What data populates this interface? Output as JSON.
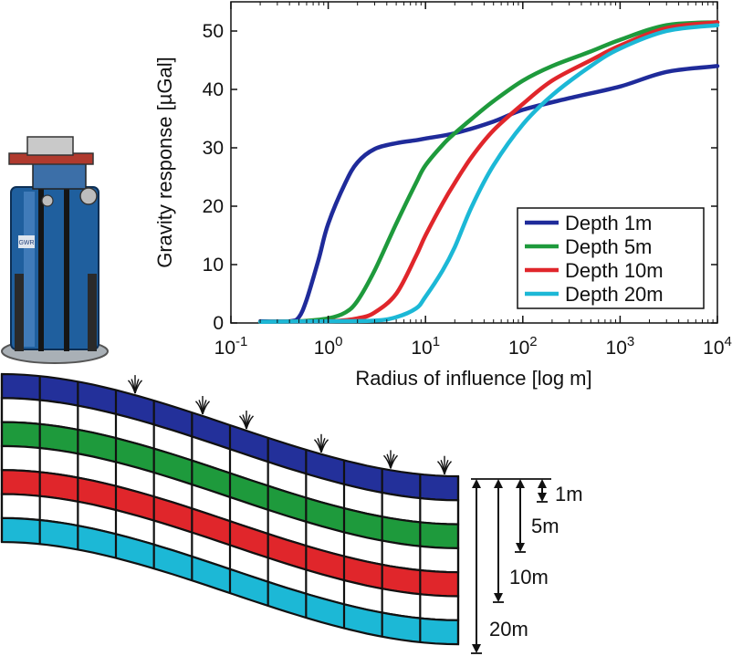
{
  "chart_data": {
    "type": "line",
    "title": "",
    "xlabel": "Radius of influence [log m]",
    "ylabel": "Gravity response [µGal]",
    "xscale": "log",
    "xlim": [
      0.1,
      10000
    ],
    "ylim": [
      0,
      55
    ],
    "yticks": [
      0,
      10,
      20,
      30,
      40,
      50
    ],
    "xticks": [
      {
        "value": 0.1,
        "base": "10",
        "exp": "-1"
      },
      {
        "value": 1,
        "base": "10",
        "exp": "0"
      },
      {
        "value": 10,
        "base": "10",
        "exp": "1"
      },
      {
        "value": 100,
        "base": "10",
        "exp": "2"
      },
      {
        "value": 1000,
        "base": "10",
        "exp": "3"
      },
      {
        "value": 10000,
        "base": "10",
        "exp": "4"
      }
    ],
    "grid": false,
    "legend": "bottom-right",
    "series": [
      {
        "name": "Depth 1m",
        "color": "#1f2b9a",
        "x": [
          0.2,
          0.4,
          0.5,
          0.6,
          0.8,
          1,
          1.5,
          2,
          3,
          5,
          8,
          10,
          20,
          50,
          100,
          300,
          1000,
          3000,
          10000
        ],
        "y": [
          0.3,
          0.3,
          1,
          4,
          11,
          17,
          24,
          27.5,
          29.8,
          30.8,
          31.3,
          31.6,
          32.5,
          34.5,
          36.5,
          38.5,
          40.5,
          43,
          44
        ]
      },
      {
        "name": "Depth 5m",
        "color": "#1e9a3c",
        "x": [
          0.2,
          0.5,
          1,
          1.5,
          2,
          3,
          5,
          8,
          10,
          15,
          20,
          30,
          50,
          100,
          200,
          500,
          1000,
          3000,
          10000
        ],
        "y": [
          0.2,
          0.3,
          0.8,
          1.8,
          3.8,
          9,
          17,
          24,
          27,
          30.5,
          32.5,
          35,
          38,
          41.5,
          44,
          46.5,
          48.5,
          51,
          51.5
        ]
      },
      {
        "name": "Depth 10m",
        "color": "#e0262b",
        "x": [
          0.2,
          1,
          2,
          3,
          5,
          8,
          10,
          15,
          20,
          30,
          50,
          100,
          200,
          500,
          1000,
          3000,
          10000
        ],
        "y": [
          0.2,
          0.3,
          0.8,
          1.8,
          5,
          11.5,
          15,
          20.5,
          24,
          28.5,
          33,
          37.5,
          41.5,
          45,
          47.5,
          50.5,
          51.5
        ]
      },
      {
        "name": "Depth 20m",
        "color": "#1cb8d6",
        "x": [
          0.2,
          1,
          3,
          5,
          8,
          10,
          15,
          20,
          30,
          50,
          100,
          200,
          500,
          1000,
          3000,
          10000
        ],
        "y": [
          0.2,
          0.3,
          0.4,
          1,
          2.5,
          4.5,
          9,
          13,
          20,
          27,
          34,
          39,
          44,
          47,
          50,
          51
        ]
      }
    ]
  },
  "figure": {
    "layer_colors": [
      "#23309a",
      "#ffffff",
      "#1e9a3c",
      "#ffffff",
      "#e0262b",
      "#ffffff",
      "#1cb8d6"
    ],
    "depth_labels": [
      "1m",
      "5m",
      "10m",
      "20m"
    ],
    "instrument": {
      "badge_text": "GWR",
      "body_color": "#1f5f9e",
      "top_color": "#b03a2e"
    }
  }
}
